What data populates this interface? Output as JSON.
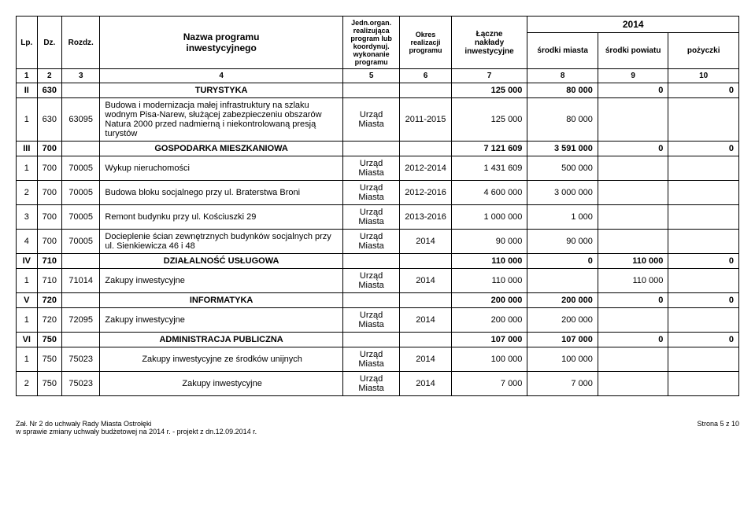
{
  "header": {
    "lp": "Lp.",
    "dz": "Dz.",
    "rozdz": "Rozdz.",
    "nazwa": "Nazwa programu\ninwestycyjnego",
    "organ1": "Jedn.organ.",
    "organ2": "realizująca",
    "organ3": "program lub",
    "organ4": "koordynuj.",
    "organ5": "wykonanie",
    "organ6": "programu",
    "okres1": "Okres",
    "okres2": "realizacji",
    "okres3": "programu",
    "naklady1": "Łączne",
    "naklady2": "nakłady",
    "naklady3": "inwestycyjne",
    "year": "2014",
    "srodki_miasta": "środki miasta",
    "srodki_powiatu": "środki powiatu",
    "pozyczki": "pożyczki",
    "nums": [
      "1",
      "2",
      "3",
      "4",
      "5",
      "6",
      "7",
      "8",
      "9",
      "10"
    ]
  },
  "sections": [
    {
      "roman": "II",
      "dz": "630",
      "title": "TURYSTYKA",
      "a": "125 000",
      "b": "80 000",
      "c": "0",
      "d": "0",
      "rows": [
        {
          "lp": "1",
          "dz": "630",
          "rozdz": "63095",
          "name": "Budowa i modernizacja małej infrastruktury na szlaku wodnym Pisa-Narew, służącej zabezpieczeniu obszarów Natura 2000 przed nadmierną i niekontrolowaną presją turystów",
          "org": "Urząd Miasta",
          "okres": "2011-2015",
          "a": "125 000",
          "b": "80 000",
          "c": "",
          "d": ""
        }
      ]
    },
    {
      "roman": "III",
      "dz": "700",
      "title": "GOSPODARKA MIESZKANIOWA",
      "a": "7 121 609",
      "b": "3 591 000",
      "c": "0",
      "d": "0",
      "rows": [
        {
          "lp": "1",
          "dz": "700",
          "rozdz": "70005",
          "name": "Wykup nieruchomości",
          "org": "Urząd Miasta",
          "okres": "2012-2014",
          "a": "1 431 609",
          "b": "500 000",
          "c": "",
          "d": ""
        },
        {
          "lp": "2",
          "dz": "700",
          "rozdz": "70005",
          "name": "Budowa bloku socjalnego przy ul. Braterstwa Broni",
          "org": "Urząd Miasta",
          "okres": "2012-2016",
          "a": "4 600 000",
          "b": "3 000 000",
          "c": "",
          "d": ""
        },
        {
          "lp": "3",
          "dz": "700",
          "rozdz": "70005",
          "name": "Remont budynku przy ul. Kościuszki 29",
          "org": "Urząd Miasta",
          "okres": "2013-2016",
          "a": "1 000 000",
          "b": "1 000",
          "c": "",
          "d": ""
        },
        {
          "lp": "4",
          "dz": "700",
          "rozdz": "70005",
          "name": "Docieplenie ścian zewnętrznych budynków socjalnych przy ul. Sienkiewicza 46 i 48",
          "org": "Urząd Miasta",
          "okres": "2014",
          "a": "90 000",
          "b": "90 000",
          "c": "",
          "d": ""
        }
      ]
    },
    {
      "roman": "IV",
      "dz": "710",
      "title": "DZIAŁALNOŚĆ  USŁUGOWA",
      "a": "110 000",
      "b": "0",
      "c": "110 000",
      "d": "0",
      "rows": [
        {
          "lp": "1",
          "dz": "710",
          "rozdz": "71014",
          "name": "Zakupy inwestycyjne",
          "org": "Urząd Miasta",
          "okres": "2014",
          "a": "110 000",
          "b": "",
          "c": "110 000",
          "d": ""
        }
      ]
    },
    {
      "roman": "V",
      "dz": "720",
      "title": "INFORMATYKA",
      "a": "200 000",
      "b": "200 000",
      "c": "0",
      "d": "0",
      "rows": [
        {
          "lp": "1",
          "dz": "720",
          "rozdz": "72095",
          "name": "Zakupy inwestycyjne",
          "org": "Urząd Miasta",
          "okres": "2014",
          "a": "200 000",
          "b": "200 000",
          "c": "",
          "d": ""
        }
      ]
    },
    {
      "roman": "VI",
      "dz": "750",
      "title": "ADMINISTRACJA PUBLICZNA",
      "a": "107 000",
      "b": "107 000",
      "c": "0",
      "d": "0",
      "rows": [
        {
          "lp": "1",
          "dz": "750",
          "rozdz": "75023",
          "name": "Zakupy inwestycyjne ze środków unijnych",
          "org": "Urząd Miasta",
          "okres": "2014",
          "a": "100 000",
          "b": "100 000",
          "c": "",
          "d": ""
        },
        {
          "lp": "2",
          "dz": "750",
          "rozdz": "75023",
          "name": "Zakupy inwestycyjne",
          "org": "Urząd Miasta",
          "okres": "2014",
          "a": "7 000",
          "b": "7 000",
          "c": "",
          "d": ""
        }
      ]
    }
  ],
  "footer": {
    "left1": "Zał. Nr 2 do uchwały Rady Miasta Ostrołęki",
    "left2": "w sprawie zmiany uchwały budżetowej  na 2014 r.  - projekt z dn.12.09.2014 r.",
    "right": "Strona 5 z 10"
  }
}
